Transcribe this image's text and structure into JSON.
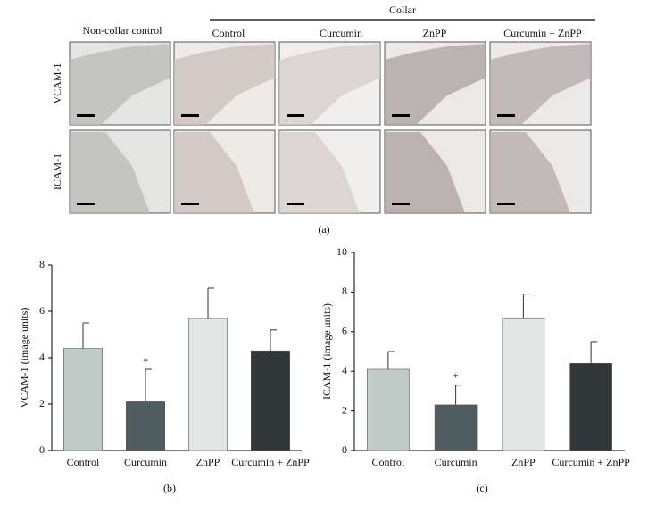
{
  "panel_a": {
    "label": "(a)",
    "group_label": "Collar",
    "columns": [
      "Non-collar control",
      "Control",
      "Curcumin",
      "ZnPP",
      "Curcumin + ZnPP"
    ],
    "rows": [
      "VCAM-1",
      "ICAM-1"
    ]
  },
  "chart_data": [
    {
      "type": "bar",
      "panel_label": "(b)",
      "y_label": "VCAM-1 (image units)",
      "categories": [
        "Control",
        "Curcumin",
        "ZnPP",
        "Curcumin + ZnPP"
      ],
      "values": [
        4.4,
        2.1,
        5.7,
        4.3
      ],
      "errors": [
        1.1,
        1.4,
        1.3,
        0.9
      ],
      "significance_labels": [
        null,
        "*",
        null,
        null
      ],
      "colors": [
        "#c0cac6",
        "#4f5d60",
        "#e2e6e5",
        "#323839"
      ],
      "ylim": [
        0,
        8
      ],
      "yticks": [
        0,
        2,
        4,
        6,
        8
      ]
    },
    {
      "type": "bar",
      "panel_label": "(c)",
      "y_label": "ICAM-1 (image units)",
      "categories": [
        "Control",
        "Curcumin",
        "ZnPP",
        "Curcumin + ZnPP"
      ],
      "values": [
        4.1,
        2.3,
        6.7,
        4.4
      ],
      "errors": [
        0.9,
        1.0,
        1.2,
        1.1
      ],
      "significance_labels": [
        null,
        "*",
        null,
        null
      ],
      "colors": [
        "#c0cac6",
        "#4f5d60",
        "#e2e6e5",
        "#323839"
      ],
      "ylim": [
        0,
        10
      ],
      "yticks": [
        0,
        2,
        4,
        6,
        8,
        10
      ]
    }
  ]
}
